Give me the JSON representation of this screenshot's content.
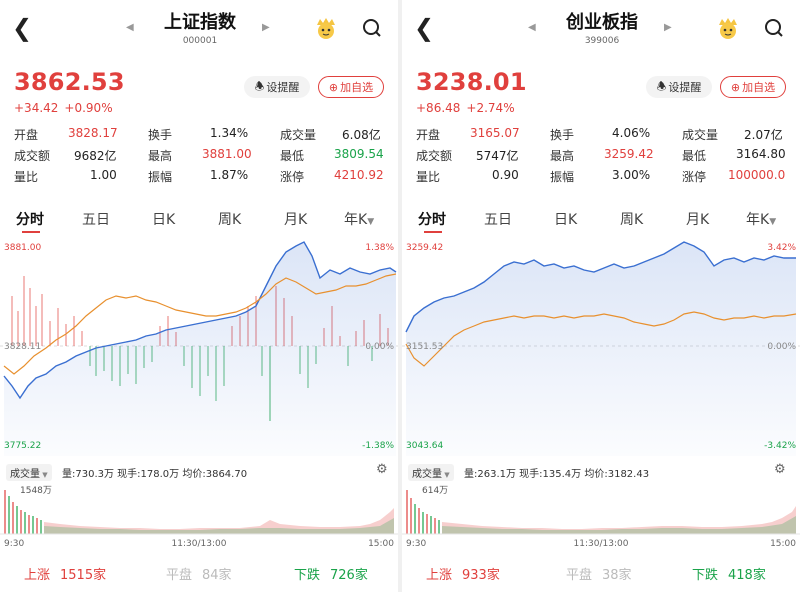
{
  "colors": {
    "up": "#e0403d",
    "down": "#1aa34a",
    "price_line": "#3a6fd1",
    "avg_line": "#e8902e"
  },
  "panels": [
    {
      "title": "上证指数",
      "code": "000001",
      "price": "3862.53",
      "change": "+34.42",
      "change_pct": "+0.90%",
      "remind_label": "设提醒",
      "add_label": "加自选",
      "stats": {
        "open_label": "开盘",
        "open": "3828.17",
        "turnover_label": "换手",
        "turnover": "1.34%",
        "volume_label": "成交量",
        "volume": "6.08亿",
        "amount_label": "成交额",
        "amount": "9682亿",
        "high_label": "最高",
        "high": "3881.00",
        "low_label": "最低",
        "low": "3809.54",
        "ratio_label": "量比",
        "ratio": "1.00",
        "amplitude_label": "振幅",
        "amplitude": "1.87%",
        "limit_label": "涨停",
        "limit": "4210.92"
      },
      "tabs": [
        "分时",
        "五日",
        "日K",
        "周K",
        "月K",
        "年K"
      ],
      "chart": {
        "top_price": "3881.00",
        "top_pct": "1.38%",
        "mid_price": "3828.11",
        "mid_pct": "0.00%",
        "bottom_price": "3775.22",
        "bottom_pct": "-1.38%"
      },
      "volume_bar": {
        "dropdown": "成交量",
        "summary": "量:730.3万 现手:178.0万 均价:3864.70",
        "max_label": "1548万",
        "time_start": "9:30",
        "time_mid": "11:30/13:00",
        "time_end": "15:00"
      },
      "footer": {
        "up_label": "上涨",
        "up_count": "1515家",
        "flat_label": "平盘",
        "flat_count": "84家",
        "down_label": "下跌",
        "down_count": "726家"
      }
    },
    {
      "title": "创业板指",
      "code": "399006",
      "price": "3238.01",
      "change": "+86.48",
      "change_pct": "+2.74%",
      "remind_label": "设提醒",
      "add_label": "加自选",
      "stats": {
        "open_label": "开盘",
        "open": "3165.07",
        "turnover_label": "换手",
        "turnover": "4.06%",
        "volume_label": "成交量",
        "volume": "2.07亿",
        "amount_label": "成交额",
        "amount": "5747亿",
        "high_label": "最高",
        "high": "3259.42",
        "low_label": "最低",
        "low": "3164.80",
        "ratio_label": "量比",
        "ratio": "0.90",
        "amplitude_label": "振幅",
        "amplitude": "3.00%",
        "limit_label": "涨停",
        "limit": "100000.0"
      },
      "tabs": [
        "分时",
        "五日",
        "日K",
        "周K",
        "月K",
        "年K"
      ],
      "chart": {
        "top_price": "3259.42",
        "top_pct": "3.42%",
        "mid_price": "3151.53",
        "mid_pct": "0.00%",
        "bottom_price": "3043.64",
        "bottom_pct": "-3.42%"
      },
      "volume_bar": {
        "dropdown": "成交量",
        "summary": "量:263.1万 现手:135.4万 均价:3182.43",
        "max_label": "614万",
        "time_start": "9:30",
        "time_mid": "11:30/13:00",
        "time_end": "15:00"
      },
      "footer": {
        "up_label": "上涨",
        "up_count": "933家",
        "flat_label": "平盘",
        "flat_count": "38家",
        "down_label": "下跌",
        "down_count": "418家"
      }
    }
  ]
}
